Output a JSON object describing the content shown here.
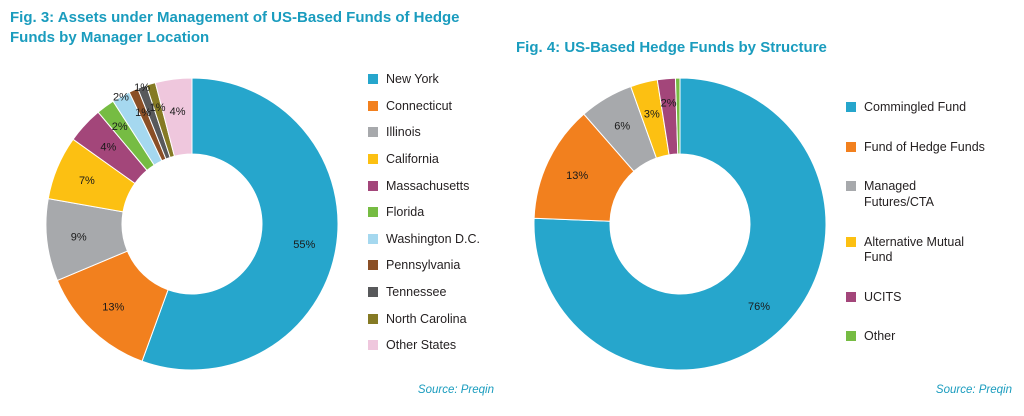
{
  "page": {
    "background_color": "#FFFFFF",
    "accent_teal": "#1A9CBE"
  },
  "chart_data": [
    {
      "type": "pie",
      "subtype": "donut",
      "title": "Fig. 3: Assets under Management of US-Based Funds of Hedge Funds by Manager Location",
      "source": "Source: Preqin",
      "legend_position": "right",
      "categories": [
        "New York",
        "Connecticut",
        "Illinois",
        "California",
        "Massachusetts",
        "Florida",
        "Washington D.C.",
        "Pennsylvania",
        "Tennessee",
        "North Carolina",
        "Other States"
      ],
      "values": [
        55,
        13,
        9,
        7,
        4,
        2,
        2,
        1,
        1,
        1,
        4
      ],
      "labels": [
        "55%",
        "13%",
        "9%",
        "7%",
        "4%",
        "2%",
        "2%",
        "1%",
        "1%",
        "1%",
        "4%"
      ],
      "colors": [
        "#26A6CC",
        "#F2801E",
        "#A7A9AC",
        "#FCC012",
        "#A3467A",
        "#76BC43",
        "#A5D8EF",
        "#8A4F26",
        "#58595B",
        "#857A24",
        "#EFC7DD"
      ]
    },
    {
      "type": "pie",
      "subtype": "donut",
      "title": "Fig. 4: US-Based Hedge Funds by Structure",
      "source": "Source: Preqin",
      "legend_position": "right",
      "categories": [
        "Commingled Fund",
        "Fund of Hedge Funds",
        "Managed Futures/CTA",
        "Alternative Mutual Fund",
        "UCITS",
        "Other"
      ],
      "legend_lines": [
        "Commingled Fund",
        "Fund of Hedge Funds",
        "Managed\nFutures/CTA",
        "Alternative Mutual\nFund",
        "UCITS",
        "Other"
      ],
      "values": [
        76,
        13,
        6,
        3,
        2,
        0.5
      ],
      "labels": [
        "76%",
        "13%",
        "6%",
        "3%",
        "2%",
        ""
      ],
      "colors": [
        "#26A6CC",
        "#F2801E",
        "#A7A9AC",
        "#FCC012",
        "#A3467A",
        "#76BC43"
      ]
    }
  ]
}
